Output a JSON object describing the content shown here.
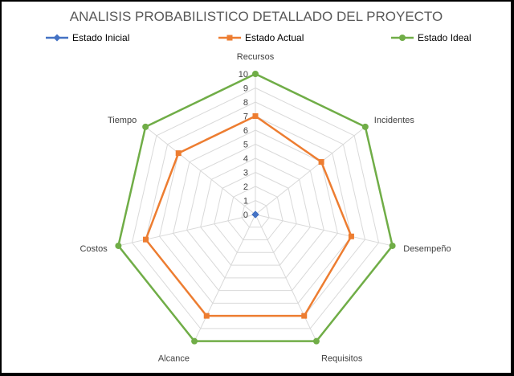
{
  "chart_data": {
    "type": "radar",
    "title": "ANALISIS PROBABILISTICO DETALLADO DEL PROYECTO",
    "categories": [
      "Recursos",
      "Incidentes",
      "Desempeño",
      "Requisitos",
      "Alcance",
      "Costos",
      "Tiempo"
    ],
    "rlim": [
      0,
      10
    ],
    "ticks": [
      "0",
      "1",
      "2",
      "3",
      "4",
      "5",
      "6",
      "7",
      "8",
      "9",
      "10"
    ],
    "grid": true,
    "legend": "top",
    "series": [
      {
        "name": "Estado Inicial",
        "values": [
          0,
          0,
          0,
          0,
          0,
          0,
          0
        ],
        "color": "#4472c4",
        "marker": "diamond"
      },
      {
        "name": "Estado Actual",
        "values": [
          7,
          6,
          7,
          8,
          8,
          8,
          7
        ],
        "color": "#ed7d31",
        "marker": "square"
      },
      {
        "name": "Estado Ideal",
        "values": [
          10,
          10,
          10,
          10,
          10,
          10,
          10
        ],
        "color": "#70ad47",
        "marker": "circle"
      }
    ]
  }
}
